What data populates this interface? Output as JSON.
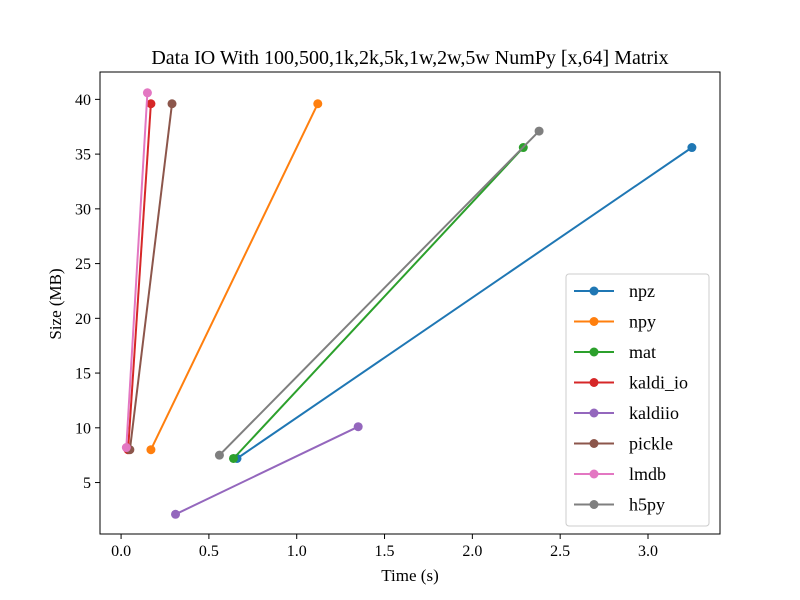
{
  "chart_data": {
    "type": "line",
    "title": "Data IO With 100,500,1k,2k,5k,1w,2w,5w NumPy [x,64] Matrix",
    "xlabel": "Time (s)",
    "ylabel": "Size (MB)",
    "xlim": [
      -0.12,
      3.41
    ],
    "ylim": [
      0.3,
      42.5
    ],
    "xticks": [
      0.0,
      0.5,
      1.0,
      1.5,
      2.0,
      2.5,
      3.0
    ],
    "xtick_labels": [
      "0.0",
      "0.5",
      "1.0",
      "1.5",
      "2.0",
      "2.5",
      "3.0"
    ],
    "yticks": [
      5,
      10,
      15,
      20,
      25,
      30,
      35,
      40
    ],
    "ytick_labels": [
      "5",
      "10",
      "15",
      "20",
      "25",
      "30",
      "35",
      "40"
    ],
    "grid": false,
    "legend_position": "bottom-right",
    "series": [
      {
        "name": "npz",
        "color": "#1f77b4",
        "x": [
          0.66,
          3.25
        ],
        "y": [
          7.2,
          35.6
        ]
      },
      {
        "name": "npy",
        "color": "#ff7f0e",
        "x": [
          0.17,
          1.12
        ],
        "y": [
          8.0,
          39.6
        ]
      },
      {
        "name": "mat",
        "color": "#2ca02c",
        "x": [
          0.64,
          2.29
        ],
        "y": [
          7.2,
          35.6
        ]
      },
      {
        "name": "kaldi_io",
        "color": "#d62728",
        "x": [
          0.04,
          0.17
        ],
        "y": [
          8.0,
          39.6
        ]
      },
      {
        "name": "kaldiio",
        "color": "#9467bd",
        "x": [
          0.31,
          1.35
        ],
        "y": [
          2.1,
          10.1
        ]
      },
      {
        "name": "pickle",
        "color": "#8c564b",
        "x": [
          0.05,
          0.29
        ],
        "y": [
          8.0,
          39.6
        ]
      },
      {
        "name": "lmdb",
        "color": "#e377c2",
        "x": [
          0.03,
          0.15
        ],
        "y": [
          8.2,
          40.6
        ]
      },
      {
        "name": "h5py",
        "color": "#7f7f7f",
        "x": [
          0.56,
          2.38
        ],
        "y": [
          7.5,
          37.1
        ]
      }
    ]
  }
}
